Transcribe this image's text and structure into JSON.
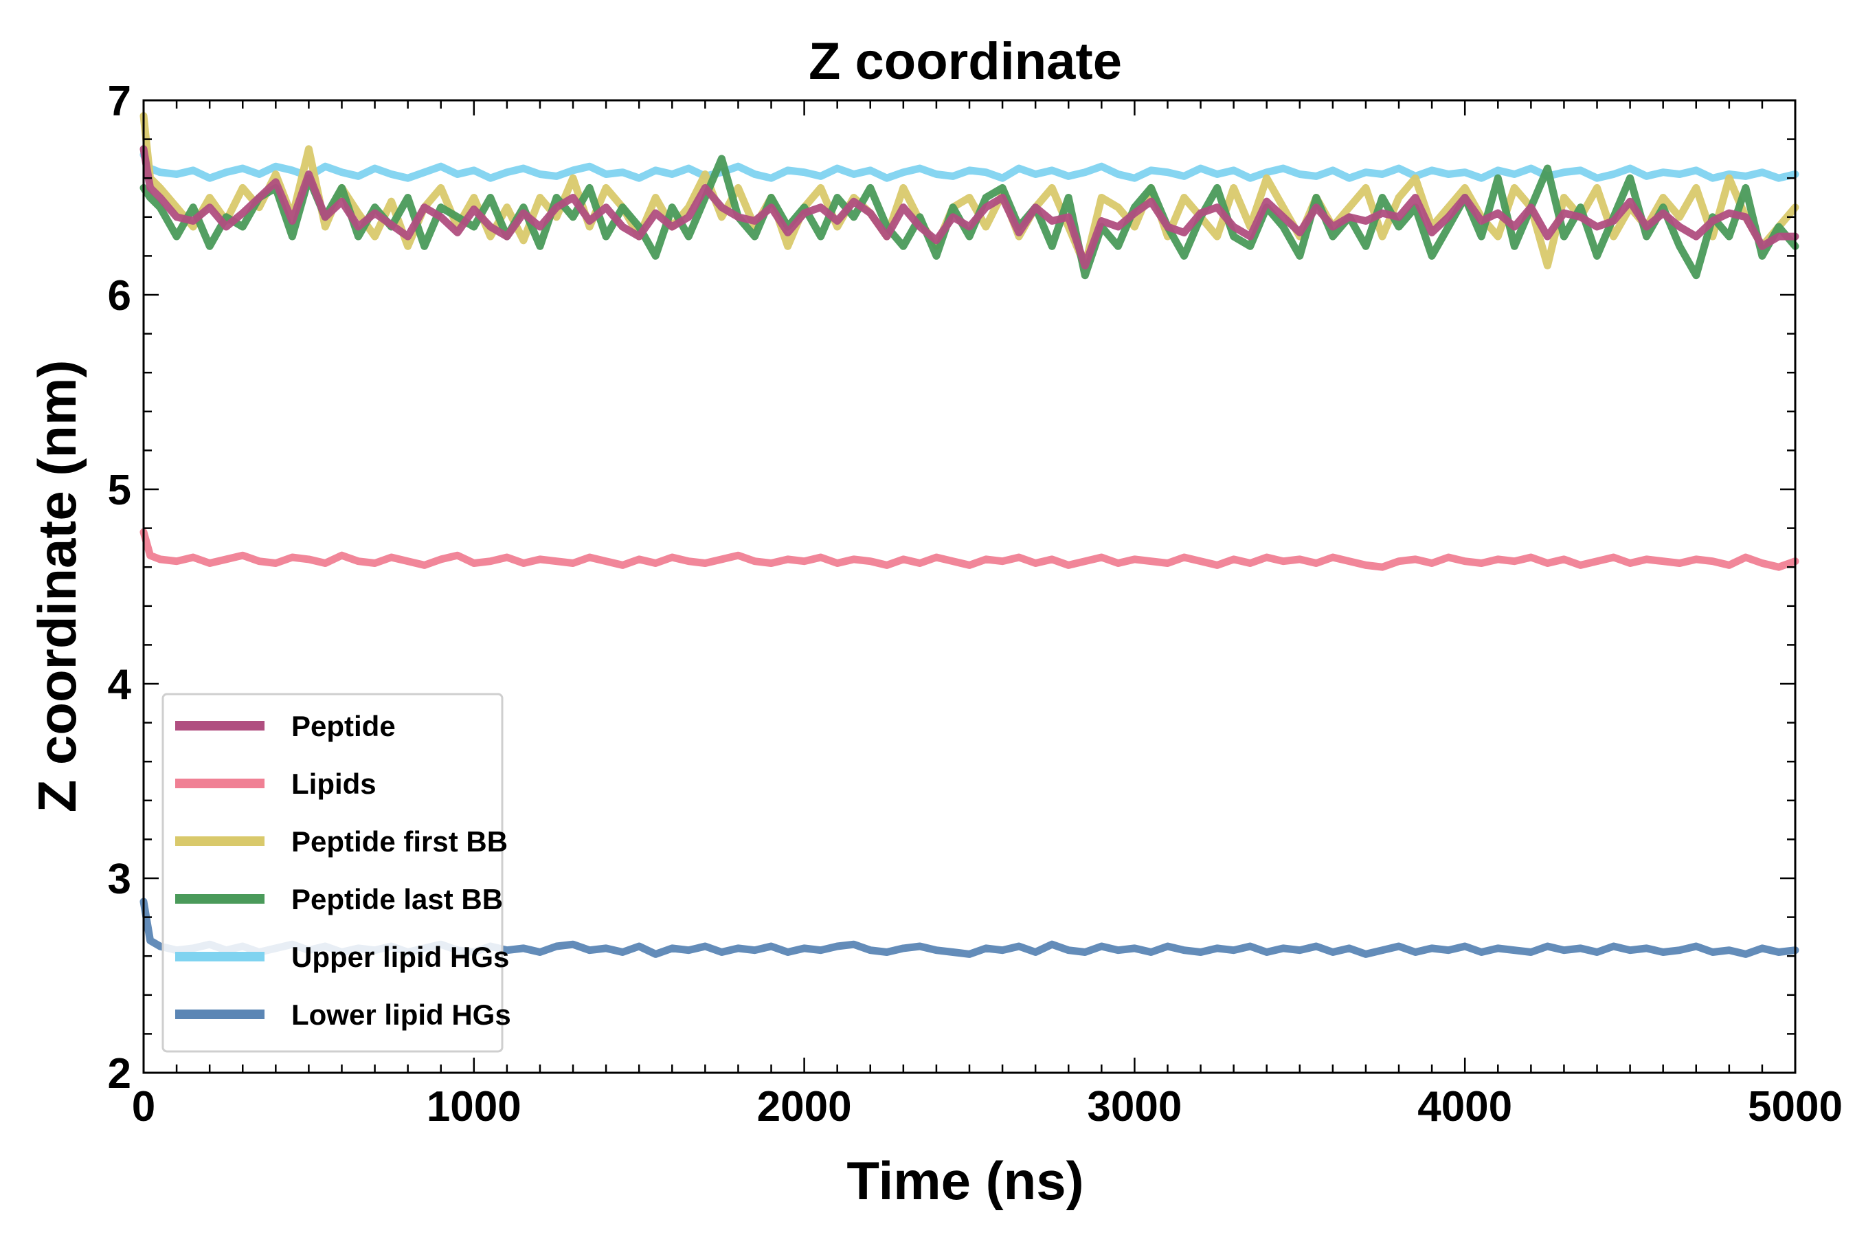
{
  "chart_data": {
    "type": "line",
    "title": "Z coordinate",
    "xlabel": "Time (ns)",
    "ylabel": "Z coordinate (nm)",
    "xlim": [
      0,
      5000
    ],
    "ylim": [
      2,
      7
    ],
    "x_ticks": [
      "0",
      "1000",
      "2000",
      "3000",
      "4000",
      "5000"
    ],
    "y_ticks": [
      "2",
      "3",
      "4",
      "5",
      "6",
      "7"
    ],
    "grid": false,
    "legend_position": "lower-left",
    "x": [
      0,
      20,
      50,
      100,
      150,
      200,
      250,
      300,
      350,
      400,
      450,
      500,
      550,
      600,
      650,
      700,
      750,
      800,
      850,
      900,
      950,
      1000,
      1050,
      1100,
      1150,
      1200,
      1250,
      1300,
      1350,
      1400,
      1450,
      1500,
      1550,
      1600,
      1650,
      1700,
      1750,
      1800,
      1850,
      1900,
      1950,
      2000,
      2050,
      2100,
      2150,
      2200,
      2250,
      2300,
      2350,
      2400,
      2450,
      2500,
      2550,
      2600,
      2650,
      2700,
      2750,
      2800,
      2850,
      2900,
      2950,
      3000,
      3050,
      3100,
      3150,
      3200,
      3250,
      3300,
      3350,
      3400,
      3450,
      3500,
      3550,
      3600,
      3650,
      3700,
      3750,
      3800,
      3850,
      3900,
      3950,
      4000,
      4050,
      4100,
      4150,
      4200,
      4250,
      4300,
      4350,
      4400,
      4450,
      4500,
      4550,
      4600,
      4650,
      4700,
      4750,
      4800,
      4850,
      4900,
      4950,
      5000
    ],
    "series": [
      {
        "name": "Upper lipid HGs",
        "color": "#7fd3f0",
        "values": [
          6.72,
          6.65,
          6.63,
          6.62,
          6.64,
          6.6,
          6.63,
          6.65,
          6.62,
          6.66,
          6.64,
          6.61,
          6.66,
          6.63,
          6.61,
          6.65,
          6.62,
          6.6,
          6.63,
          6.66,
          6.62,
          6.64,
          6.6,
          6.63,
          6.65,
          6.62,
          6.61,
          6.64,
          6.66,
          6.62,
          6.63,
          6.6,
          6.64,
          6.62,
          6.65,
          6.61,
          6.63,
          6.66,
          6.62,
          6.6,
          6.64,
          6.63,
          6.61,
          6.65,
          6.62,
          6.64,
          6.6,
          6.63,
          6.65,
          6.62,
          6.61,
          6.64,
          6.63,
          6.6,
          6.65,
          6.62,
          6.64,
          6.61,
          6.63,
          6.66,
          6.62,
          6.6,
          6.64,
          6.63,
          6.61,
          6.65,
          6.62,
          6.64,
          6.6,
          6.63,
          6.65,
          6.62,
          6.61,
          6.64,
          6.6,
          6.63,
          6.62,
          6.65,
          6.61,
          6.64,
          6.62,
          6.63,
          6.6,
          6.64,
          6.62,
          6.65,
          6.61,
          6.63,
          6.64,
          6.6,
          6.62,
          6.65,
          6.61,
          6.63,
          6.62,
          6.64,
          6.6,
          6.62,
          6.61,
          6.63,
          6.6,
          6.62
        ]
      },
      {
        "name": "Peptide first BB",
        "color": "#d9c96b",
        "values": [
          6.92,
          6.6,
          6.55,
          6.45,
          6.35,
          6.5,
          6.38,
          6.55,
          6.45,
          6.62,
          6.4,
          6.75,
          6.35,
          6.55,
          6.42,
          6.3,
          6.48,
          6.25,
          6.45,
          6.55,
          6.35,
          6.5,
          6.3,
          6.45,
          6.28,
          6.5,
          6.4,
          6.6,
          6.35,
          6.55,
          6.45,
          6.3,
          6.5,
          6.35,
          6.45,
          6.62,
          6.4,
          6.55,
          6.35,
          6.5,
          6.25,
          6.45,
          6.55,
          6.35,
          6.5,
          6.42,
          6.3,
          6.55,
          6.38,
          6.25,
          6.45,
          6.5,
          6.35,
          6.52,
          6.3,
          6.45,
          6.55,
          6.35,
          6.15,
          6.5,
          6.45,
          6.35,
          6.55,
          6.3,
          6.5,
          6.4,
          6.3,
          6.55,
          6.35,
          6.6,
          6.45,
          6.3,
          6.5,
          6.35,
          6.45,
          6.55,
          6.3,
          6.5,
          6.6,
          6.35,
          6.45,
          6.55,
          6.4,
          6.3,
          6.55,
          6.45,
          6.15,
          6.5,
          6.4,
          6.55,
          6.3,
          6.45,
          6.35,
          6.5,
          6.4,
          6.55,
          6.3,
          6.6,
          6.4,
          6.25,
          6.35,
          6.45
        ]
      },
      {
        "name": "Peptide last BB",
        "color": "#4a9a5a",
        "values": [
          6.55,
          6.5,
          6.45,
          6.3,
          6.45,
          6.25,
          6.4,
          6.35,
          6.5,
          6.55,
          6.3,
          6.6,
          6.4,
          6.55,
          6.3,
          6.45,
          6.35,
          6.5,
          6.25,
          6.45,
          6.4,
          6.35,
          6.5,
          6.3,
          6.45,
          6.25,
          6.5,
          6.4,
          6.55,
          6.3,
          6.45,
          6.35,
          6.2,
          6.45,
          6.3,
          6.5,
          6.7,
          6.4,
          6.3,
          6.5,
          6.35,
          6.45,
          6.3,
          6.5,
          6.4,
          6.55,
          6.35,
          6.25,
          6.4,
          6.2,
          6.45,
          6.3,
          6.5,
          6.55,
          6.35,
          6.45,
          6.25,
          6.5,
          6.1,
          6.35,
          6.25,
          6.45,
          6.55,
          6.35,
          6.2,
          6.4,
          6.55,
          6.3,
          6.25,
          6.45,
          6.35,
          6.2,
          6.5,
          6.3,
          6.4,
          6.25,
          6.5,
          6.35,
          6.45,
          6.2,
          6.35,
          6.5,
          6.3,
          6.6,
          6.25,
          6.45,
          6.65,
          6.3,
          6.45,
          6.2,
          6.4,
          6.6,
          6.3,
          6.45,
          6.25,
          6.1,
          6.4,
          6.3,
          6.55,
          6.2,
          6.35,
          6.25
        ]
      },
      {
        "name": "Lipids",
        "color": "#f08094",
        "values": [
          4.78,
          4.66,
          4.64,
          4.63,
          4.65,
          4.62,
          4.64,
          4.66,
          4.63,
          4.62,
          4.65,
          4.64,
          4.62,
          4.66,
          4.63,
          4.62,
          4.65,
          4.63,
          4.61,
          4.64,
          4.66,
          4.62,
          4.63,
          4.65,
          4.62,
          4.64,
          4.63,
          4.62,
          4.65,
          4.63,
          4.61,
          4.64,
          4.62,
          4.65,
          4.63,
          4.62,
          4.64,
          4.66,
          4.63,
          4.62,
          4.64,
          4.63,
          4.65,
          4.62,
          4.64,
          4.63,
          4.61,
          4.64,
          4.62,
          4.65,
          4.63,
          4.61,
          4.64,
          4.63,
          4.65,
          4.62,
          4.64,
          4.61,
          4.63,
          4.65,
          4.62,
          4.64,
          4.63,
          4.62,
          4.65,
          4.63,
          4.61,
          4.64,
          4.62,
          4.65,
          4.63,
          4.64,
          4.62,
          4.65,
          4.63,
          4.61,
          4.6,
          4.63,
          4.64,
          4.62,
          4.65,
          4.63,
          4.62,
          4.64,
          4.63,
          4.65,
          4.62,
          4.64,
          4.61,
          4.63,
          4.65,
          4.62,
          4.64,
          4.63,
          4.62,
          4.64,
          4.63,
          4.61,
          4.65,
          4.62,
          4.6,
          4.63
        ]
      },
      {
        "name": "Lower lipid HGs",
        "color": "#5b86b5",
        "values": [
          2.88,
          2.68,
          2.65,
          2.63,
          2.64,
          2.66,
          2.63,
          2.65,
          2.62,
          2.64,
          2.66,
          2.63,
          2.65,
          2.62,
          2.64,
          2.63,
          2.65,
          2.62,
          2.64,
          2.66,
          2.63,
          2.62,
          2.65,
          2.63,
          2.64,
          2.62,
          2.65,
          2.66,
          2.63,
          2.64,
          2.62,
          2.65,
          2.61,
          2.64,
          2.63,
          2.65,
          2.62,
          2.64,
          2.63,
          2.65,
          2.62,
          2.64,
          2.63,
          2.65,
          2.66,
          2.63,
          2.62,
          2.64,
          2.65,
          2.63,
          2.62,
          2.61,
          2.64,
          2.63,
          2.65,
          2.62,
          2.66,
          2.63,
          2.62,
          2.65,
          2.63,
          2.64,
          2.62,
          2.65,
          2.63,
          2.62,
          2.64,
          2.63,
          2.65,
          2.62,
          2.64,
          2.63,
          2.65,
          2.62,
          2.64,
          2.61,
          2.63,
          2.65,
          2.62,
          2.64,
          2.63,
          2.65,
          2.62,
          2.64,
          2.63,
          2.62,
          2.65,
          2.63,
          2.64,
          2.62,
          2.65,
          2.63,
          2.64,
          2.62,
          2.63,
          2.65,
          2.62,
          2.63,
          2.61,
          2.64,
          2.62,
          2.63
        ]
      },
      {
        "name": "Peptide",
        "color": "#b04e80",
        "values": [
          6.75,
          6.55,
          6.5,
          6.4,
          6.38,
          6.45,
          6.35,
          6.42,
          6.5,
          6.58,
          6.38,
          6.62,
          6.4,
          6.48,
          6.35,
          6.42,
          6.36,
          6.3,
          6.45,
          6.4,
          6.32,
          6.44,
          6.35,
          6.3,
          6.42,
          6.35,
          6.45,
          6.5,
          6.38,
          6.45,
          6.35,
          6.3,
          6.42,
          6.35,
          6.4,
          6.55,
          6.45,
          6.4,
          6.38,
          6.45,
          6.32,
          6.42,
          6.45,
          6.38,
          6.48,
          6.42,
          6.3,
          6.45,
          6.35,
          6.28,
          6.4,
          6.35,
          6.45,
          6.5,
          6.32,
          6.45,
          6.38,
          6.4,
          6.15,
          6.38,
          6.35,
          6.42,
          6.48,
          6.35,
          6.32,
          6.42,
          6.45,
          6.35,
          6.3,
          6.48,
          6.4,
          6.32,
          6.45,
          6.35,
          6.4,
          6.38,
          6.42,
          6.4,
          6.5,
          6.32,
          6.4,
          6.5,
          6.38,
          6.42,
          6.35,
          6.45,
          6.3,
          6.42,
          6.4,
          6.35,
          6.38,
          6.48,
          6.35,
          6.42,
          6.35,
          6.3,
          6.38,
          6.42,
          6.4,
          6.25,
          6.3,
          6.3
        ]
      }
    ],
    "legend_order": [
      "Peptide",
      "Lipids",
      "Peptide first BB",
      "Peptide last BB",
      "Upper lipid HGs",
      "Lower lipid HGs"
    ]
  }
}
